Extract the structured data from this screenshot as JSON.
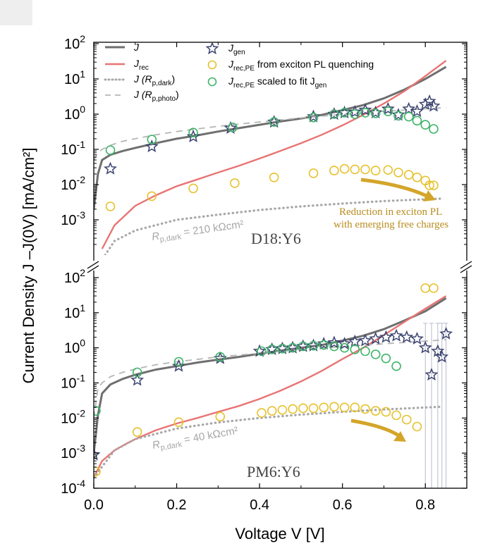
{
  "chart_data": [
    {
      "type": "line",
      "panel": "top",
      "sample_label": "D18:Y6",
      "ylabel": "Current Density  J –J(0V) [mA/cm²]",
      "xlabel": "Voltage V [V]",
      "xlim": [
        0,
        0.9
      ],
      "ylim_log10": [
        -4,
        2
      ],
      "series": [
        {
          "name": "J",
          "style": "line",
          "color": "#6f6f6f",
          "x": [
            0.0,
            0.01,
            0.02,
            0.04,
            0.07,
            0.1,
            0.15,
            0.2,
            0.25,
            0.3,
            0.35,
            0.4,
            0.45,
            0.5,
            0.55,
            0.6,
            0.65,
            0.7,
            0.75,
            0.8,
            0.85
          ],
          "y": [
            0.002,
            0.02,
            0.05,
            0.07,
            0.09,
            0.11,
            0.15,
            0.2,
            0.25,
            0.32,
            0.4,
            0.5,
            0.62,
            0.75,
            0.95,
            1.3,
            1.8,
            2.8,
            5,
            10,
            22
          ]
        },
        {
          "name": "J_rec",
          "style": "line",
          "color": "#e87474",
          "x": [
            0.02,
            0.05,
            0.08,
            0.1,
            0.15,
            0.2,
            0.25,
            0.3,
            0.35,
            0.4,
            0.45,
            0.5,
            0.55,
            0.6,
            0.65,
            0.7,
            0.75,
            0.8,
            0.85
          ],
          "y": [
            0.00015,
            0.0007,
            0.0015,
            0.0025,
            0.005,
            0.009,
            0.014,
            0.022,
            0.034,
            0.055,
            0.09,
            0.15,
            0.26,
            0.48,
            0.95,
            2.0,
            4.5,
            12,
            33
          ]
        },
        {
          "name": "J (R_p,dark)",
          "style": "dotted",
          "color": "#a8a8a8",
          "x": [
            0.01,
            0.05,
            0.1,
            0.2,
            0.3,
            0.4,
            0.5,
            0.6,
            0.7,
            0.84
          ],
          "y": [
            5e-05,
            0.00025,
            0.0005,
            0.001,
            0.0014,
            0.0019,
            0.0024,
            0.0029,
            0.0034,
            0.004
          ]
        },
        {
          "name": "J (R_p,photo)",
          "style": "dashed",
          "color": "#b5b5b5",
          "x": [
            0.0,
            0.01,
            0.02,
            0.04,
            0.07,
            0.1,
            0.15,
            0.2,
            0.3,
            0.4,
            0.5,
            0.6,
            0.7,
            0.8,
            0.85
          ],
          "y": [
            0.05,
            0.08,
            0.1,
            0.13,
            0.17,
            0.2,
            0.26,
            0.32,
            0.45,
            0.6,
            0.78,
            0.98,
            1.2,
            1.42,
            1.55
          ]
        },
        {
          "name": "J_gen",
          "style": "star",
          "color": "#3c4470",
          "x": [
            0.04,
            0.14,
            0.24,
            0.33,
            0.435,
            0.53,
            0.58,
            0.605,
            0.63,
            0.655,
            0.68,
            0.71,
            0.735,
            0.76,
            0.78,
            0.8,
            0.81,
            0.82
          ],
          "y": [
            0.028,
            0.12,
            0.23,
            0.4,
            0.6,
            0.85,
            1.0,
            1.1,
            1.15,
            1.3,
            1.1,
            1.4,
            0.95,
            1.4,
            1.2,
            1.9,
            2.3,
            1.7
          ]
        },
        {
          "name": "J_rec,PE",
          "style": "circle",
          "color": "#e6c22e",
          "x": [
            0.04,
            0.14,
            0.24,
            0.34,
            0.435,
            0.53,
            0.58,
            0.605,
            0.63,
            0.655,
            0.68,
            0.71,
            0.735,
            0.76,
            0.78,
            0.8,
            0.81,
            0.82
          ],
          "y": [
            0.0024,
            0.0047,
            0.0078,
            0.011,
            0.016,
            0.021,
            0.025,
            0.028,
            0.027,
            0.027,
            0.025,
            0.026,
            0.022,
            0.019,
            0.016,
            0.013,
            0.0095,
            0.0095
          ]
        },
        {
          "name": "J_rec,PE scaled",
          "style": "circle",
          "color": "#3fb56a",
          "x": [
            0.04,
            0.14,
            0.24,
            0.335,
            0.435,
            0.53,
            0.58,
            0.605,
            0.63,
            0.655,
            0.68,
            0.71,
            0.735,
            0.76,
            0.78,
            0.8,
            0.82
          ],
          "y": [
            0.095,
            0.19,
            0.3,
            0.42,
            0.6,
            0.8,
            1.0,
            1.1,
            1.0,
            1.1,
            1.05,
            1.2,
            0.9,
            0.85,
            0.65,
            0.5,
            0.38
          ]
        }
      ]
    },
    {
      "type": "line",
      "panel": "bottom",
      "sample_label": "PM6:Y6",
      "xlim": [
        0,
        0.9
      ],
      "ylim_log10": [
        -4,
        2
      ],
      "series": [
        {
          "name": "J",
          "style": "line",
          "color": "#6f6f6f",
          "x": [
            0.0,
            0.01,
            0.02,
            0.04,
            0.07,
            0.1,
            0.15,
            0.2,
            0.25,
            0.3,
            0.35,
            0.4,
            0.45,
            0.5,
            0.55,
            0.6,
            0.65,
            0.7,
            0.75,
            0.8,
            0.85
          ],
          "y": [
            0.001,
            0.012,
            0.05,
            0.09,
            0.13,
            0.17,
            0.24,
            0.3,
            0.38,
            0.46,
            0.55,
            0.68,
            0.83,
            1.0,
            1.2,
            1.6,
            2.2,
            3.4,
            6,
            11,
            26
          ]
        },
        {
          "name": "J_rec",
          "style": "line",
          "color": "#e87474",
          "x": [
            0.0,
            0.02,
            0.05,
            0.08,
            0.1,
            0.15,
            0.2,
            0.25,
            0.3,
            0.35,
            0.4,
            0.45,
            0.5,
            0.55,
            0.6,
            0.65,
            0.7,
            0.75,
            0.8,
            0.85
          ],
          "y": [
            0.0002,
            0.0006,
            0.0012,
            0.0019,
            0.0025,
            0.0045,
            0.007,
            0.01,
            0.015,
            0.022,
            0.035,
            0.06,
            0.11,
            0.22,
            0.48,
            1.0,
            2.3,
            5.5,
            13,
            30
          ]
        },
        {
          "name": "J (R_p,dark)",
          "style": "dotted",
          "color": "#a8a8a8",
          "x": [
            0.0,
            0.05,
            0.1,
            0.2,
            0.3,
            0.4,
            0.5,
            0.6,
            0.7,
            0.84
          ],
          "y": [
            0.0002,
            0.0012,
            0.0025,
            0.005,
            0.0075,
            0.01,
            0.0125,
            0.015,
            0.0175,
            0.021
          ]
        },
        {
          "name": "J (R_p,photo)",
          "style": "dashed",
          "color": "#b5b5b5",
          "x": [
            0.0,
            0.01,
            0.02,
            0.04,
            0.07,
            0.1,
            0.15,
            0.2,
            0.3,
            0.4,
            0.5,
            0.6,
            0.7,
            0.8,
            0.85
          ],
          "y": [
            0.01,
            0.07,
            0.1,
            0.15,
            0.2,
            0.25,
            0.33,
            0.4,
            0.55,
            0.7,
            0.88,
            1.08,
            1.3,
            1.55,
            1.7
          ]
        },
        {
          "name": "J_gen",
          "style": "star",
          "color": "#3c4470",
          "x": [
            0.0,
            0.105,
            0.205,
            0.305,
            0.4,
            0.43,
            0.455,
            0.48,
            0.505,
            0.53,
            0.555,
            0.58,
            0.605,
            0.63,
            0.655,
            0.68,
            0.705,
            0.73,
            0.755,
            0.78,
            0.8,
            0.815,
            0.83,
            0.84,
            0.85
          ],
          "y": [
            0.0009,
            0.12,
            0.3,
            0.5,
            0.8,
            0.9,
            0.95,
            1.0,
            1.1,
            1.15,
            1.3,
            1.4,
            1.3,
            1.5,
            1.6,
            1.8,
            2.0,
            2.2,
            2.0,
            1.8,
            1.0,
            0.17,
            0.8,
            0.55,
            2.5
          ]
        },
        {
          "name": "J_rec,PE",
          "style": "circle",
          "color": "#e6c22e",
          "x": [
            0.005,
            0.105,
            0.205,
            0.305,
            0.405,
            0.43,
            0.455,
            0.48,
            0.505,
            0.53,
            0.555,
            0.58,
            0.605,
            0.63,
            0.655,
            0.68,
            0.705,
            0.73,
            0.755,
            0.78,
            0.8,
            0.82
          ],
          "y": [
            0.0003,
            0.004,
            0.0076,
            0.011,
            0.014,
            0.016,
            0.017,
            0.018,
            0.019,
            0.019,
            0.02,
            0.021,
            0.02,
            0.02,
            0.018,
            0.016,
            0.015,
            0.012,
            0.009,
            0.0057,
            50,
            50
          ]
        },
        {
          "name": "J_rec,PE scaled",
          "style": "circle",
          "color": "#3fb56a",
          "x": [
            0.005,
            0.105,
            0.205,
            0.305,
            0.405,
            0.43,
            0.455,
            0.48,
            0.505,
            0.53,
            0.555,
            0.58,
            0.605,
            0.63,
            0.655,
            0.68,
            0.705,
            0.73
          ],
          "y": [
            0.016,
            0.2,
            0.4,
            0.55,
            0.8,
            0.9,
            0.95,
            1.0,
            1.1,
            1.15,
            1.2,
            1.1,
            1.0,
            0.9,
            0.8,
            0.65,
            0.5,
            0.3
          ]
        }
      ]
    }
  ],
  "axes": {
    "x_ticks": [
      "0.0",
      "0.2",
      "0.4",
      "0.6",
      "0.8"
    ],
    "x_values": [
      0,
      0.2,
      0.4,
      0.6,
      0.8
    ],
    "y_exponents": [
      "2",
      "1",
      "0",
      "-1",
      "-2",
      "-3",
      "-4"
    ],
    "y_base": "10"
  },
  "text": {
    "ylabel": "Current Density  J –J(0V) [mA/cm²]",
    "xlabel": "Voltage  V [V]",
    "top_sample": "D18:Y6",
    "bottom_sample": "PM6:Y6",
    "top_rp": "R",
    "top_rp_sub": "p,dark",
    "top_rp_val": " = 210 kΩcm²",
    "bottom_rp": "R",
    "bottom_rp_sub": "p,dark",
    "bottom_rp_val": " = 40 kΩcm²",
    "annotation_line1": "Reduction in exciton PL",
    "annotation_line2": "with emerging free charges"
  },
  "legend": {
    "j": "J",
    "jrec": "J",
    "jrec_sub": "rec",
    "jdark": "J (R",
    "jdark_sub": "p,dark",
    "jdark_close": ")",
    "jphoto": "J (R",
    "jphoto_sub": "p,photo",
    "jphoto_close": ")",
    "jgen": "J",
    "jgen_sub": "gen",
    "jpe": "J",
    "jpe_sub": "rec,PE",
    "jpe_text": " from exciton PL quenching",
    "jpes": "J",
    "jpes_sub": "rec,PE",
    "jpes_text": " scaled to fit  J",
    "jpes_sub2": "gen"
  },
  "colors": {
    "J": "#6f6f6f",
    "Jrec": "#e87474",
    "dark": "#a8a8a8",
    "photo": "#b5b5b5",
    "gen": "#3c4470",
    "pe": "#e6c22e",
    "pes": "#3fb56a",
    "arrow": "#d4a52a"
  }
}
